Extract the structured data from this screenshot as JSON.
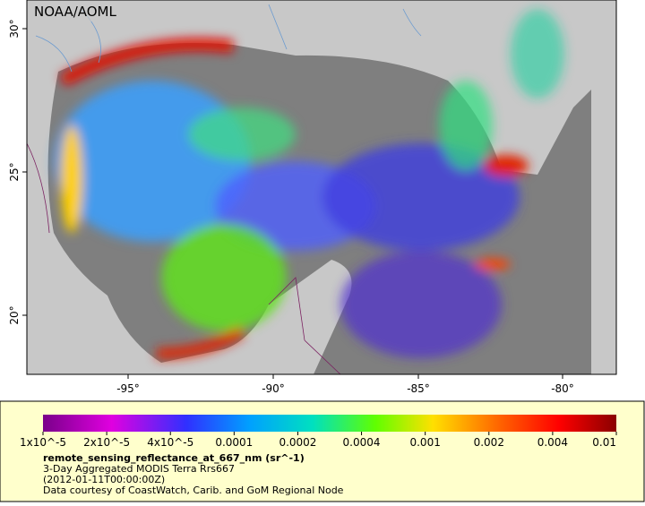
{
  "map": {
    "credit": "NOAA/AOML",
    "lat_labels": [
      "30°",
      "25°",
      "20°"
    ],
    "lon_labels": [
      "-95°",
      "-90°",
      "-85°",
      "-80°"
    ]
  },
  "legend": {
    "scale_labels": [
      "1x10^-5",
      "2x10^-5",
      "4x10^-5",
      "0.0001",
      "0.0002",
      "0.0004",
      "0.001",
      "0.002",
      "0.004",
      "0.01"
    ],
    "title": "remote_sensing_reflectance_at_667_nm (sr^-1)",
    "lines": [
      "3-Day Aggregated MODIS Terra Rrs667",
      "(2012-01-11T00:00:00Z)",
      "Data courtesy of CoastWatch, Carib. and GoM Regional Node"
    ]
  }
}
